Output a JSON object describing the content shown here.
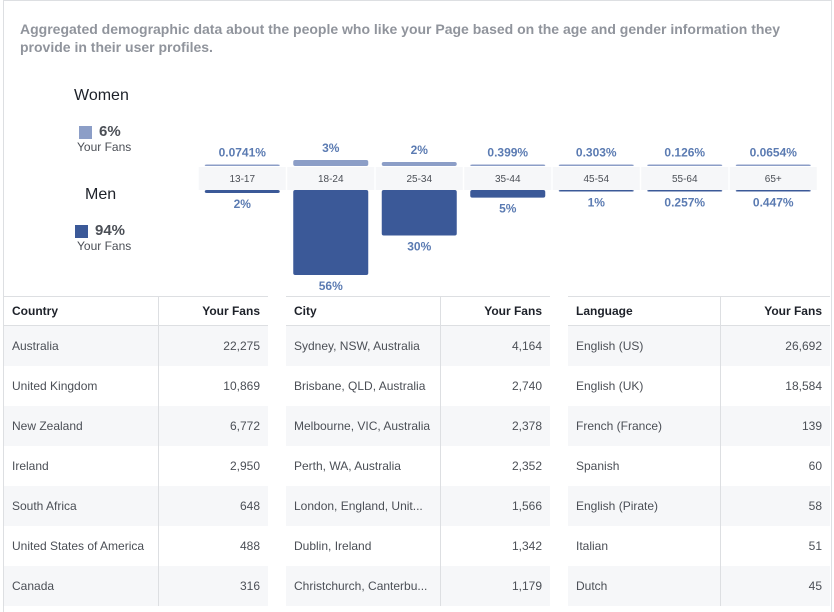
{
  "description": "Aggregated demographic data about the people who like your Page based on the age and gender information they provide in their user profiles.",
  "gender": {
    "women": {
      "title": "Women",
      "percent": "6%",
      "label": "Your Fans",
      "color": "#8c9ec7"
    },
    "men": {
      "title": "Men",
      "percent": "94%",
      "label": "Your Fans",
      "color": "#3b5998"
    }
  },
  "chart_data": {
    "type": "bar",
    "categories": [
      "13-17",
      "18-24",
      "25-34",
      "35-44",
      "45-54",
      "55-64",
      "65+"
    ],
    "series": [
      {
        "name": "Women",
        "values": [
          0.0741,
          3,
          2,
          0.399,
          0.303,
          0.126,
          0.0654
        ],
        "labels": [
          "0.0741%",
          "3%",
          "2%",
          "0.399%",
          "0.303%",
          "0.126%",
          "0.0654%"
        ],
        "color": "#8c9ec7"
      },
      {
        "name": "Men",
        "values": [
          2,
          56,
          30,
          5,
          1,
          0.257,
          0.447
        ],
        "labels": [
          "2%",
          "56%",
          "30%",
          "5%",
          "1%",
          "0.257%",
          "0.447%"
        ],
        "color": "#3b5998"
      }
    ],
    "ylim": [
      0,
      56
    ],
    "orientation": "mirrored",
    "legend": "left"
  },
  "tables": {
    "country": {
      "headers": [
        "Country",
        "Your Fans"
      ],
      "rows": [
        [
          "Australia",
          "22,275"
        ],
        [
          "United Kingdom",
          "10,869"
        ],
        [
          "New Zealand",
          "6,772"
        ],
        [
          "Ireland",
          "2,950"
        ],
        [
          "South Africa",
          "648"
        ],
        [
          "United States of America",
          "488"
        ],
        [
          "Canada",
          "316"
        ]
      ]
    },
    "city": {
      "headers": [
        "City",
        "Your Fans"
      ],
      "rows": [
        [
          "Sydney, NSW, Australia",
          "4,164"
        ],
        [
          "Brisbane, QLD, Australia",
          "2,740"
        ],
        [
          "Melbourne, VIC, Australia",
          "2,378"
        ],
        [
          "Perth, WA, Australia",
          "2,352"
        ],
        [
          "London, England, Unit...",
          "1,566"
        ],
        [
          "Dublin, Ireland",
          "1,342"
        ],
        [
          "Christchurch, Canterbu...",
          "1,179"
        ]
      ]
    },
    "language": {
      "headers": [
        "Language",
        "Your Fans"
      ],
      "rows": [
        [
          "English (US)",
          "26,692"
        ],
        [
          "English (UK)",
          "18,584"
        ],
        [
          "French (France)",
          "139"
        ],
        [
          "Spanish",
          "60"
        ],
        [
          "English (Pirate)",
          "58"
        ],
        [
          "Italian",
          "51"
        ],
        [
          "Dutch",
          "45"
        ]
      ]
    }
  }
}
